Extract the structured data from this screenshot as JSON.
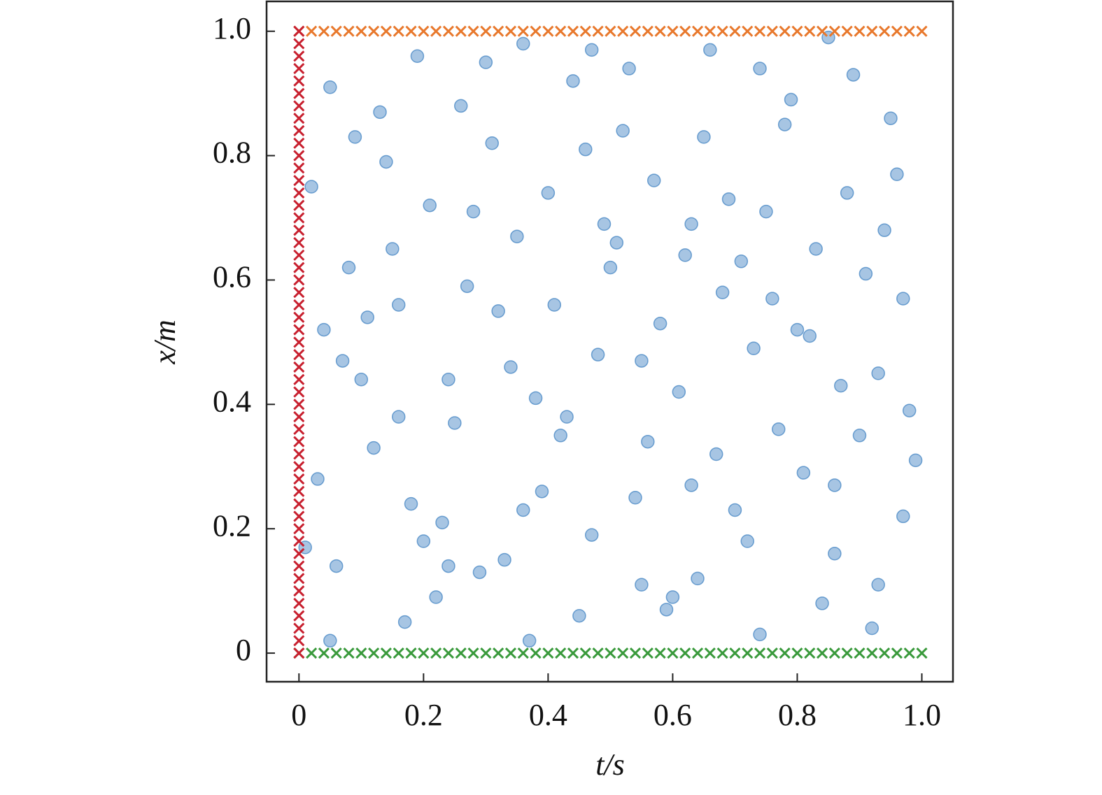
{
  "chart_data": {
    "type": "scatter",
    "xlabel": "t/s",
    "ylabel": "x/m",
    "xlim": [
      -0.052,
      1.05
    ],
    "ylim": [
      -0.046,
      1.048
    ],
    "xticks": [
      0,
      0.2,
      0.4,
      0.6,
      0.8,
      {
        "value": 1,
        "label": "1.0"
      }
    ],
    "yticks": [
      0,
      0.2,
      0.4,
      0.6,
      0.8,
      {
        "value": 1,
        "label": "1.0"
      }
    ],
    "series": [
      {
        "color": "#3b7fc0",
        "marker": "circle",
        "x": [
          0.05,
          0.12,
          0.21,
          0.33,
          0.41,
          0.52,
          0.63,
          0.71,
          0.84,
          0.93,
          0.08,
          0.17,
          0.26,
          0.38,
          0.47,
          0.58,
          0.66,
          0.77,
          0.88,
          0.97,
          0.03,
          0.14,
          0.24,
          0.35,
          0.44,
          0.55,
          0.68,
          0.74,
          0.82,
          0.95,
          0.07,
          0.19,
          0.29,
          0.31,
          0.49,
          0.56,
          0.61,
          0.79,
          0.86,
          0.91,
          0.02,
          0.11,
          0.23,
          0.36,
          0.43,
          0.51,
          0.64,
          0.73,
          0.89,
          0.99,
          0.06,
          0.16,
          0.27,
          0.39,
          0.46,
          0.59,
          0.69,
          0.76,
          0.81,
          0.94,
          0.04,
          0.13,
          0.22,
          0.34,
          0.42,
          0.53,
          0.62,
          0.72,
          0.87,
          0.96,
          0.09,
          0.18,
          0.28,
          0.37,
          0.48,
          0.57,
          0.67,
          0.78,
          0.83,
          0.92,
          0.01,
          0.15,
          0.25,
          0.32,
          0.45,
          0.54,
          0.65,
          0.75,
          0.85,
          0.98,
          0.1,
          0.2,
          0.3,
          0.4,
          0.5,
          0.6,
          0.7,
          0.8,
          0.9,
          0.97,
          0.05,
          0.16,
          0.24,
          0.36,
          0.47,
          0.55,
          0.63,
          0.74,
          0.86,
          0.93
        ],
        "values": [
          0.91,
          0.33,
          0.72,
          0.15,
          0.56,
          0.84,
          0.27,
          0.63,
          0.08,
          0.45,
          0.62,
          0.05,
          0.88,
          0.41,
          0.19,
          0.53,
          0.97,
          0.36,
          0.74,
          0.22,
          0.28,
          0.79,
          0.44,
          0.67,
          0.92,
          0.11,
          0.58,
          0.03,
          0.51,
          0.86,
          0.47,
          0.96,
          0.13,
          0.82,
          0.69,
          0.34,
          0.42,
          0.89,
          0.16,
          0.61,
          0.75,
          0.54,
          0.21,
          0.98,
          0.38,
          0.66,
          0.12,
          0.49,
          0.93,
          0.31,
          0.14,
          0.38,
          0.59,
          0.26,
          0.81,
          0.07,
          0.73,
          0.57,
          0.29,
          0.68,
          0.52,
          0.87,
          0.09,
          0.46,
          0.35,
          0.94,
          0.64,
          0.18,
          0.43,
          0.77,
          0.83,
          0.24,
          0.71,
          0.02,
          0.48,
          0.76,
          0.32,
          0.85,
          0.65,
          0.04,
          0.17,
          0.65,
          0.37,
          0.55,
          0.06,
          0.25,
          0.83,
          0.71,
          0.99,
          0.39,
          0.44,
          0.18,
          0.95,
          0.74,
          0.62,
          0.09,
          0.23,
          0.52,
          0.35,
          0.57,
          0.02,
          0.56,
          0.14,
          0.23,
          0.97,
          0.47,
          0.69,
          0.94,
          0.27,
          0.11
        ]
      },
      {
        "color": "#e8782c",
        "marker": "cross",
        "x": [
          0,
          0.02,
          0.04,
          0.06,
          0.08,
          0.1,
          0.12,
          0.14,
          0.16,
          0.18,
          0.2,
          0.22,
          0.24,
          0.26,
          0.28,
          0.3,
          0.32,
          0.34,
          0.36,
          0.38,
          0.4,
          0.42,
          0.44,
          0.46,
          0.48,
          0.5,
          0.52,
          0.54,
          0.56,
          0.58,
          0.6,
          0.62,
          0.64,
          0.66,
          0.68,
          0.7,
          0.72,
          0.74,
          0.76,
          0.78,
          0.8,
          0.82,
          0.84,
          0.86,
          0.88,
          0.9,
          0.92,
          0.94,
          0.96,
          0.98,
          1
        ],
        "values": [
          1,
          1,
          1,
          1,
          1,
          1,
          1,
          1,
          1,
          1,
          1,
          1,
          1,
          1,
          1,
          1,
          1,
          1,
          1,
          1,
          1,
          1,
          1,
          1,
          1,
          1,
          1,
          1,
          1,
          1,
          1,
          1,
          1,
          1,
          1,
          1,
          1,
          1,
          1,
          1,
          1,
          1,
          1,
          1,
          1,
          1,
          1,
          1,
          1,
          1,
          1
        ]
      },
      {
        "color": "#3a9a3c",
        "marker": "cross",
        "x": [
          0,
          0.02,
          0.04,
          0.06,
          0.08,
          0.1,
          0.12,
          0.14,
          0.16,
          0.18,
          0.2,
          0.22,
          0.24,
          0.26,
          0.28,
          0.3,
          0.32,
          0.34,
          0.36,
          0.38,
          0.4,
          0.42,
          0.44,
          0.46,
          0.48,
          0.5,
          0.52,
          0.54,
          0.56,
          0.58,
          0.6,
          0.62,
          0.64,
          0.66,
          0.68,
          0.7,
          0.72,
          0.74,
          0.76,
          0.78,
          0.8,
          0.82,
          0.84,
          0.86,
          0.88,
          0.9,
          0.92,
          0.94,
          0.96,
          0.98,
          1
        ],
        "values": [
          0,
          0,
          0,
          0,
          0,
          0,
          0,
          0,
          0,
          0,
          0,
          0,
          0,
          0,
          0,
          0,
          0,
          0,
          0,
          0,
          0,
          0,
          0,
          0,
          0,
          0,
          0,
          0,
          0,
          0,
          0,
          0,
          0,
          0,
          0,
          0,
          0,
          0,
          0,
          0,
          0,
          0,
          0,
          0,
          0,
          0,
          0,
          0,
          0,
          0,
          0
        ]
      },
      {
        "color": "#c8202f",
        "marker": "cross",
        "x": [
          0,
          0,
          0,
          0,
          0,
          0,
          0,
          0,
          0,
          0,
          0,
          0,
          0,
          0,
          0,
          0,
          0,
          0,
          0,
          0,
          0,
          0,
          0,
          0,
          0,
          0,
          0,
          0,
          0,
          0,
          0,
          0,
          0,
          0,
          0,
          0,
          0,
          0,
          0,
          0,
          0,
          0,
          0,
          0,
          0,
          0,
          0,
          0,
          0,
          0,
          0
        ],
        "values": [
          0,
          0.02,
          0.04,
          0.06,
          0.08,
          0.1,
          0.12,
          0.14,
          0.16,
          0.18,
          0.2,
          0.22,
          0.24,
          0.26,
          0.28,
          0.3,
          0.32,
          0.34,
          0.36,
          0.38,
          0.4,
          0.42,
          0.44,
          0.46,
          0.48,
          0.5,
          0.52,
          0.54,
          0.56,
          0.58,
          0.6,
          0.62,
          0.64,
          0.66,
          0.68,
          0.7,
          0.72,
          0.74,
          0.76,
          0.78,
          0.8,
          0.82,
          0.84,
          0.86,
          0.88,
          0.9,
          0.92,
          0.94,
          0.96,
          0.98,
          1
        ]
      }
    ]
  }
}
